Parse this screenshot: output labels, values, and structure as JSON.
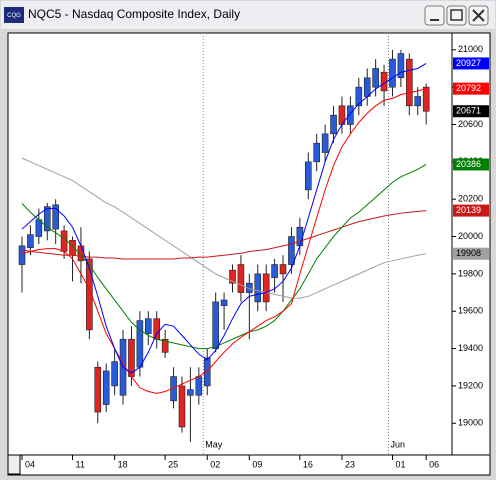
{
  "window": {
    "title": "NQC5 - Nasdaq Composite Index, Daily",
    "icon": "CQG"
  },
  "chart_data": {
    "type": "candlestick",
    "categories": [
      "04",
      null,
      null,
      null,
      null,
      null,
      "11",
      null,
      null,
      null,
      null,
      "18",
      null,
      null,
      null,
      null,
      null,
      "25",
      null,
      null,
      null,
      null,
      "02",
      null,
      null,
      null,
      null,
      "09",
      null,
      null,
      null,
      null,
      null,
      "16",
      null,
      null,
      null,
      null,
      "23",
      null,
      null,
      null,
      null,
      null,
      "01",
      null,
      null,
      null,
      "06"
    ],
    "months": [
      null,
      null,
      null,
      null,
      null,
      null,
      null,
      null,
      null,
      null,
      null,
      null,
      null,
      null,
      null,
      null,
      null,
      null,
      null,
      null,
      null,
      null,
      "May",
      null,
      null,
      null,
      null,
      null,
      null,
      null,
      null,
      null,
      null,
      null,
      null,
      null,
      null,
      null,
      null,
      null,
      null,
      null,
      null,
      null,
      "Jun",
      null,
      null,
      null,
      null
    ],
    "open": [
      19850,
      19940,
      20000,
      20030,
      20040,
      20030,
      19980,
      19950,
      19880,
      19300,
      19100,
      19200,
      19150,
      19450,
      19300,
      19480,
      19560,
      19450,
      19120,
      19200,
      19150,
      19150,
      19200,
      19400,
      19630,
      19820,
      19850,
      19700,
      19650,
      19800,
      19780,
      19850,
      19850,
      19950,
      20250,
      20400,
      20450,
      20550,
      20700,
      20600,
      20700,
      20750,
      20800,
      20880,
      20800,
      20850,
      20950,
      20700,
      20800
    ],
    "high": [
      20000,
      20060,
      20150,
      20180,
      20200,
      20060,
      20000,
      20050,
      19920,
      19330,
      19320,
      19400,
      19500,
      19520,
      19600,
      19600,
      19600,
      19500,
      19300,
      19250,
      19300,
      19300,
      19400,
      19700,
      19700,
      19850,
      19900,
      19800,
      19850,
      19850,
      19880,
      19900,
      20050,
      20100,
      20450,
      20550,
      20600,
      20700,
      20750,
      20750,
      20850,
      20900,
      20950,
      20920,
      21000,
      21000,
      20980,
      20800,
      20820
    ],
    "low": [
      19700,
      19900,
      19960,
      19980,
      19960,
      19880,
      19760,
      19750,
      19450,
      19000,
      19060,
      19150,
      19100,
      19200,
      19250,
      19420,
      19400,
      19350,
      19080,
      18950,
      18900,
      19100,
      19150,
      19380,
      19500,
      19700,
      19650,
      19450,
      19600,
      19600,
      19700,
      19650,
      19800,
      19900,
      20200,
      20350,
      20400,
      20500,
      20550,
      20550,
      20650,
      20700,
      20750,
      20700,
      20750,
      20800,
      20650,
      20650,
      20600
    ],
    "close": [
      19950,
      20010,
      20090,
      20160,
      20170,
      19920,
      19900,
      19870,
      19500,
      19060,
      19280,
      19330,
      19450,
      19250,
      19550,
      19560,
      19450,
      19380,
      19250,
      18980,
      19180,
      19250,
      19350,
      19650,
      19660,
      19750,
      19700,
      19750,
      19800,
      19650,
      19850,
      19800,
      20000,
      20050,
      20400,
      20500,
      20550,
      20650,
      20600,
      20700,
      20800,
      20850,
      20900,
      20780,
      20950,
      20980,
      20700,
      20750,
      20671
    ],
    "up_color": "#2a5bd7",
    "down_color": "#e02424",
    "series": [
      {
        "color": "#a0a0a0",
        "values": [
          20420,
          20400,
          20380,
          20360,
          20340,
          20320,
          20300,
          20270,
          20240,
          20210,
          20180,
          20160,
          20130,
          20100,
          20070,
          20040,
          20010,
          19980,
          19950,
          19920,
          19890,
          19860,
          19830,
          19800,
          19780,
          19760,
          19740,
          19720,
          19710,
          19700,
          19690,
          19680,
          19670,
          19670,
          19680,
          19700,
          19720,
          19740,
          19760,
          19780,
          19800,
          19820,
          19840,
          19860,
          19870,
          19880,
          19890,
          19900,
          19908
        ]
      },
      {
        "color": "#c81818",
        "values": [
          19930,
          19920,
          19915,
          19910,
          19905,
          19900,
          19900,
          19895,
          19890,
          19890,
          19885,
          19885,
          19880,
          19880,
          19880,
          19880,
          19880,
          19880,
          19880,
          19885,
          19885,
          19890,
          19890,
          19895,
          19900,
          19905,
          19910,
          19920,
          19925,
          19930,
          19940,
          19950,
          19960,
          19975,
          19990,
          20005,
          20020,
          20035,
          20050,
          20065,
          20080,
          20090,
          20100,
          20110,
          20118,
          20125,
          20130,
          20135,
          20139
        ]
      },
      {
        "color": "#008000",
        "values": [
          20177,
          20130,
          20090,
          20050,
          20020,
          19990,
          19950,
          19900,
          19850,
          19780,
          19720,
          19660,
          19600,
          19540,
          19500,
          19470,
          19450,
          19440,
          19430,
          19420,
          19410,
          19400,
          19400,
          19410,
          19430,
          19450,
          19470,
          19490,
          19500,
          19520,
          19550,
          19600,
          19660,
          19720,
          19800,
          19880,
          19940,
          20000,
          20050,
          20100,
          20130,
          20170,
          20210,
          20250,
          20290,
          20320,
          20340,
          20360,
          20386
        ]
      },
      {
        "color": "#ff0000",
        "values": [
          19908,
          19920,
          19930,
          19935,
          19935,
          19920,
          19880,
          19800,
          19720,
          19600,
          19480,
          19400,
          19320,
          19250,
          19190,
          19170,
          19160,
          19170,
          19190,
          19210,
          19230,
          19250,
          19280,
          19330,
          19380,
          19425,
          19460,
          19490,
          19520,
          19550,
          19570,
          19600,
          19640,
          19800,
          19950,
          20100,
          20250,
          20380,
          20480,
          20550,
          20610,
          20660,
          20700,
          20730,
          20740,
          20760,
          20770,
          20780,
          20792
        ]
      },
      {
        "color": "#0000ff",
        "values": [
          20040,
          20080,
          20120,
          20150,
          20150,
          20110,
          20050,
          19950,
          19830,
          19680,
          19520,
          19400,
          19300,
          19270,
          19300,
          19380,
          19480,
          19530,
          19520,
          19470,
          19420,
          19370,
          19340,
          19390,
          19470,
          19560,
          19640,
          19680,
          19690,
          19700,
          19720,
          19760,
          19830,
          19950,
          20100,
          20250,
          20400,
          20520,
          20600,
          20660,
          20710,
          20750,
          20790,
          20820,
          20850,
          20880,
          20890,
          20900,
          20927
        ]
      }
    ],
    "ylim": [
      18830,
      21090
    ],
    "yticks": [
      19000,
      19200,
      19400,
      19600,
      19800,
      20000,
      20200,
      20400,
      20600,
      20800,
      21000
    ]
  }
}
